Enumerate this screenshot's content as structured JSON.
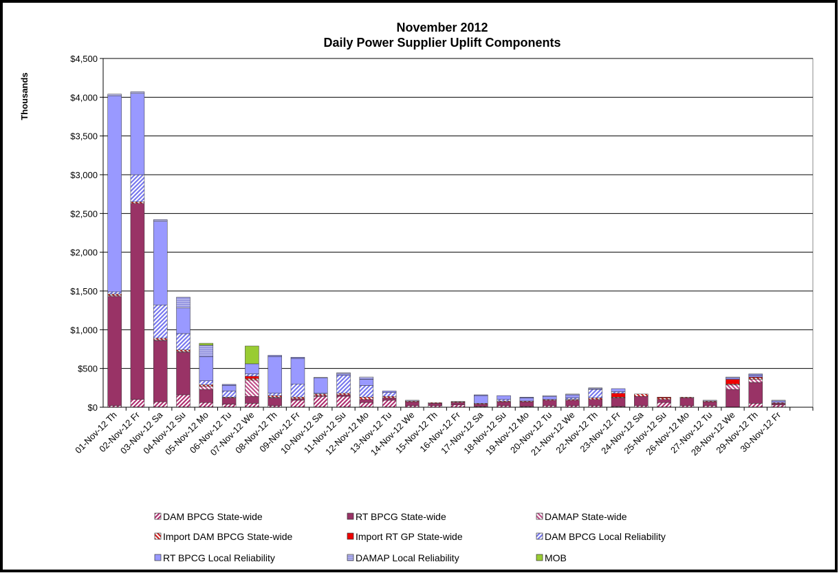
{
  "chart_data": {
    "type": "stacked_bar",
    "title": "November 2012",
    "subtitle": "Daily Power Supplier Uplift Components",
    "y_label": "Thousands",
    "categories": [
      "01-Nov-12 Th",
      "02-Nov-12 Fr",
      "03-Nov-12 Sa",
      "04-Nov-12 Su",
      "05-Nov-12 Mo",
      "06-Nov-12 Tu",
      "07-Nov-12 We",
      "08-Nov-12 Th",
      "09-Nov-12 Fr",
      "10-Nov-12 Sa",
      "11-Nov-12 Su",
      "12-Nov-12 Mo",
      "13-Nov-12 Tu",
      "14-Nov-12 We",
      "15-Nov-12 Th",
      "16-Nov-12 Fr",
      "17-Nov-12 Sa",
      "18-Nov-12 Su",
      "19-Nov-12 Mo",
      "20-Nov-12 Tu",
      "21-Nov-12 We",
      "22-Nov-12 Th",
      "23-Nov-12 Fr",
      "24-Nov-12 Sa",
      "25-Nov-12 Su",
      "26-Nov-12 Mo",
      "27-Nov-12 Tu",
      "28-Nov-12 We",
      "29-Nov-12 Th",
      "30-Nov-12 Fr",
      null
    ],
    "series": [
      {
        "name": "DAM BPCG State-wide",
        "color": "#b03070",
        "hatch": "fwd",
        "values": [
          20,
          100,
          70,
          160,
          60,
          40,
          50,
          20,
          90,
          140,
          140,
          60,
          90,
          20,
          20,
          30,
          10,
          20,
          10,
          20,
          20,
          20,
          10,
          20,
          60,
          20,
          20,
          0,
          50,
          30,
          null
        ]
      },
      {
        "name": "RT BPCG State-wide",
        "color": "#993366",
        "values": [
          1410,
          2530,
          790,
          550,
          170,
          80,
          90,
          100,
          20,
          10,
          20,
          40,
          30,
          50,
          30,
          30,
          30,
          50,
          60,
          70,
          70,
          80,
          110,
          120,
          40,
          100,
          50,
          230,
          270,
          20,
          null
        ]
      },
      {
        "name": "DAMAP State-wide",
        "color": "#c0508a",
        "hatch": "back",
        "values": [
          10,
          0,
          10,
          10,
          40,
          0,
          210,
          10,
          0,
          0,
          0,
          0,
          0,
          0,
          0,
          0,
          0,
          0,
          0,
          0,
          0,
          0,
          0,
          0,
          0,
          0,
          0,
          60,
          40,
          0,
          null
        ]
      },
      {
        "name": "Import DAM BPCG State-wide",
        "color": "#cc2020",
        "hatch": "back",
        "values": [
          20,
          20,
          20,
          20,
          20,
          10,
          20,
          20,
          20,
          20,
          20,
          30,
          20,
          10,
          10,
          10,
          10,
          10,
          10,
          10,
          10,
          20,
          10,
          30,
          20,
          10,
          10,
          10,
          20,
          10,
          null
        ]
      },
      {
        "name": "Import RT GP State-wide",
        "color": "#ee0000",
        "values": [
          0,
          0,
          0,
          0,
          0,
          0,
          30,
          0,
          0,
          0,
          0,
          0,
          0,
          0,
          0,
          0,
          0,
          0,
          0,
          0,
          0,
          0,
          50,
          0,
          10,
          0,
          0,
          60,
          10,
          0,
          null
        ]
      },
      {
        "name": "DAM BPCG Local Reliability",
        "color": "#7777ee",
        "hatch": "fwd",
        "values": [
          30,
          350,
          430,
          210,
          50,
          80,
          30,
          30,
          170,
          10,
          230,
          150,
          50,
          0,
          0,
          0,
          0,
          20,
          0,
          0,
          20,
          110,
          20,
          0,
          0,
          0,
          0,
          0,
          0,
          0,
          null
        ]
      },
      {
        "name": "RT BPCG Local Reliability",
        "color": "#9999ff",
        "values": [
          2530,
          1050,
          1080,
          330,
          310,
          70,
          130,
          470,
          330,
          200,
          20,
          80,
          20,
          0,
          0,
          0,
          100,
          50,
          40,
          40,
          40,
          10,
          40,
          0,
          0,
          0,
          0,
          20,
          20,
          20,
          null
        ]
      },
      {
        "name": "DAMAP Local Reliability",
        "color": "#8888dd",
        "hatch": "horiz",
        "values": [
          20,
          20,
          20,
          140,
          150,
          15,
          0,
          20,
          15,
          5,
          15,
          30,
          0,
          10,
          0,
          5,
          10,
          0,
          10,
          10,
          10,
          10,
          0,
          0,
          0,
          0,
          10,
          10,
          20,
          10,
          null
        ]
      },
      {
        "name": "MOB",
        "color": "#99cc33",
        "values": [
          0,
          0,
          0,
          0,
          25,
          0,
          230,
          0,
          0,
          0,
          0,
          0,
          0,
          0,
          0,
          0,
          0,
          0,
          0,
          0,
          0,
          0,
          0,
          0,
          0,
          0,
          0,
          0,
          0,
          0,
          null
        ]
      }
    ],
    "ylim": [
      0,
      4500
    ],
    "yticks": [
      {
        "value": 0,
        "label": "$0"
      },
      {
        "value": 500,
        "label": "$500"
      },
      {
        "value": 1000,
        "label": "$1,000"
      },
      {
        "value": 1500,
        "label": "$1,500"
      },
      {
        "value": 2000,
        "label": "$2,000"
      },
      {
        "value": 2500,
        "label": "$2,500"
      },
      {
        "value": 3000,
        "label": "$3,000"
      },
      {
        "value": 3500,
        "label": "$3,500"
      },
      {
        "value": 4000,
        "label": "$4,000"
      },
      {
        "value": 4500,
        "label": "$4,500"
      }
    ],
    "grid": true,
    "legend": "bottom"
  }
}
